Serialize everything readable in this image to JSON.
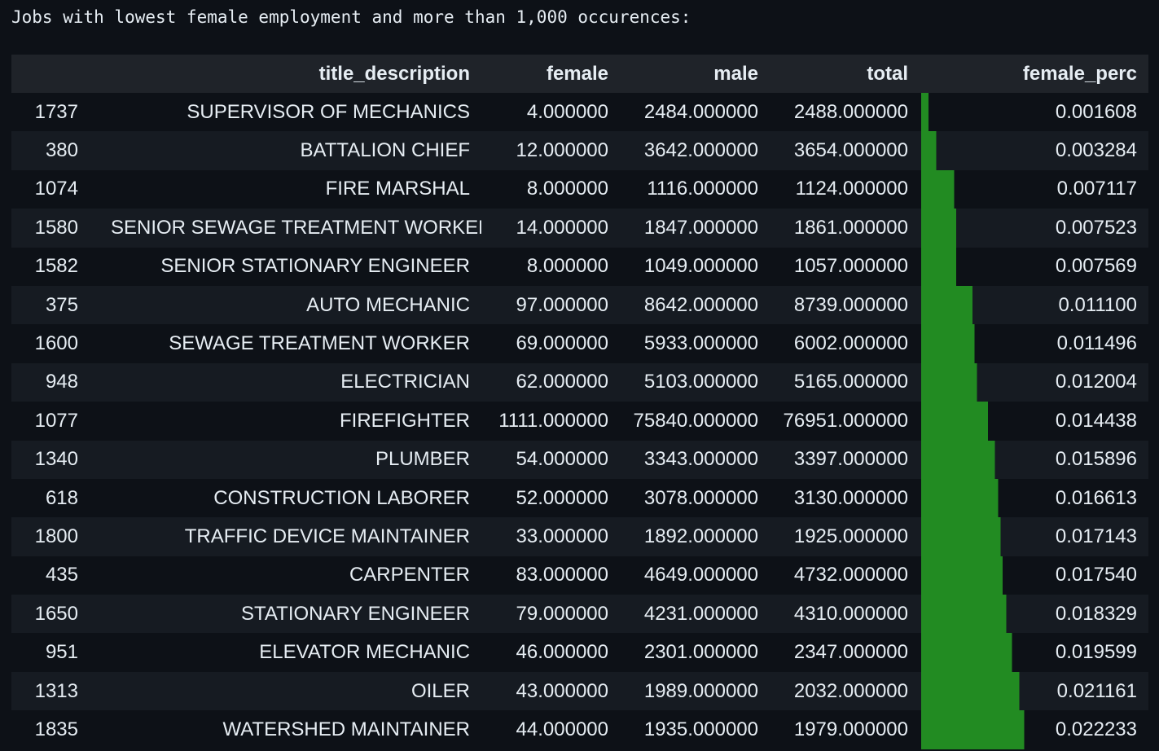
{
  "caption": "Jobs with lowest female employment and more than 1,000 occurences:",
  "bar_color": "#228b22",
  "columns": [
    "",
    "title_description",
    "female",
    "male",
    "total",
    "female_perc"
  ],
  "rows": [
    {
      "idx": "1737",
      "title": "SUPERVISOR OF MECHANICS",
      "female": "4.000000",
      "male": "2484.000000",
      "total": "2488.000000",
      "perc": "0.001608",
      "perc_value": 0.001608
    },
    {
      "idx": "380",
      "title": "BATTALION CHIEF",
      "female": "12.000000",
      "male": "3642.000000",
      "total": "3654.000000",
      "perc": "0.003284",
      "perc_value": 0.003284
    },
    {
      "idx": "1074",
      "title": "FIRE MARSHAL",
      "female": "8.000000",
      "male": "1116.000000",
      "total": "1124.000000",
      "perc": "0.007117",
      "perc_value": 0.007117
    },
    {
      "idx": "1580",
      "title": "SENIOR SEWAGE TREATMENT WORKER",
      "female": "14.000000",
      "male": "1847.000000",
      "total": "1861.000000",
      "perc": "0.007523",
      "perc_value": 0.007523
    },
    {
      "idx": "1582",
      "title": "SENIOR STATIONARY ENGINEER",
      "female": "8.000000",
      "male": "1049.000000",
      "total": "1057.000000",
      "perc": "0.007569",
      "perc_value": 0.007569
    },
    {
      "idx": "375",
      "title": "AUTO MECHANIC",
      "female": "97.000000",
      "male": "8642.000000",
      "total": "8739.000000",
      "perc": "0.011100",
      "perc_value": 0.0111
    },
    {
      "idx": "1600",
      "title": "SEWAGE TREATMENT WORKER",
      "female": "69.000000",
      "male": "5933.000000",
      "total": "6002.000000",
      "perc": "0.011496",
      "perc_value": 0.011496
    },
    {
      "idx": "948",
      "title": "ELECTRICIAN",
      "female": "62.000000",
      "male": "5103.000000",
      "total": "5165.000000",
      "perc": "0.012004",
      "perc_value": 0.012004
    },
    {
      "idx": "1077",
      "title": "FIREFIGHTER",
      "female": "1111.000000",
      "male": "75840.000000",
      "total": "76951.000000",
      "perc": "0.014438",
      "perc_value": 0.014438
    },
    {
      "idx": "1340",
      "title": "PLUMBER",
      "female": "54.000000",
      "male": "3343.000000",
      "total": "3397.000000",
      "perc": "0.015896",
      "perc_value": 0.015896
    },
    {
      "idx": "618",
      "title": "CONSTRUCTION LABORER",
      "female": "52.000000",
      "male": "3078.000000",
      "total": "3130.000000",
      "perc": "0.016613",
      "perc_value": 0.016613
    },
    {
      "idx": "1800",
      "title": "TRAFFIC DEVICE MAINTAINER",
      "female": "33.000000",
      "male": "1892.000000",
      "total": "1925.000000",
      "perc": "0.017143",
      "perc_value": 0.017143
    },
    {
      "idx": "435",
      "title": "CARPENTER",
      "female": "83.000000",
      "male": "4649.000000",
      "total": "4732.000000",
      "perc": "0.017540",
      "perc_value": 0.01754
    },
    {
      "idx": "1650",
      "title": "STATIONARY ENGINEER",
      "female": "79.000000",
      "male": "4231.000000",
      "total": "4310.000000",
      "perc": "0.018329",
      "perc_value": 0.018329
    },
    {
      "idx": "951",
      "title": "ELEVATOR MECHANIC",
      "female": "46.000000",
      "male": "2301.000000",
      "total": "2347.000000",
      "perc": "0.019599",
      "perc_value": 0.019599
    },
    {
      "idx": "1313",
      "title": "OILER",
      "female": "43.000000",
      "male": "1989.000000",
      "total": "2032.000000",
      "perc": "0.021161",
      "perc_value": 0.021161
    },
    {
      "idx": "1835",
      "title": "WATERSHED MAINTAINER",
      "female": "44.000000",
      "male": "1935.000000",
      "total": "1979.000000",
      "perc": "0.022233",
      "perc_value": 0.022233
    }
  ]
}
